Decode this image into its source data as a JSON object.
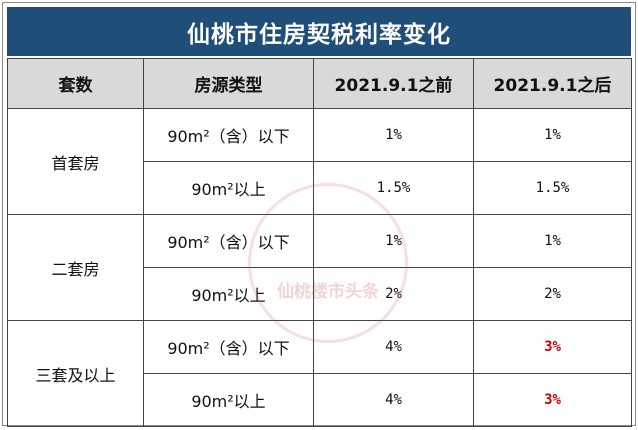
{
  "title": "仙桃市住房契税利率变化",
  "table": {
    "header": [
      "套数",
      "房源类型",
      "2021.9.1之前",
      "2021.9.1之后"
    ],
    "groups": [
      {
        "name": "首套房",
        "rows": [
          [
            "90m²（含）以下",
            "1%",
            "1%"
          ],
          [
            "90m²以上",
            "1.5%",
            "1.5%"
          ]
        ]
      },
      {
        "name": "二套房",
        "rows": [
          [
            "90m²（含）以下",
            "1%",
            "1%"
          ],
          [
            "90m²以上",
            "2%",
            "2%"
          ]
        ]
      },
      {
        "name": "三套及以上",
        "rows": [
          [
            "90m²（含）以下",
            "4%",
            "3%"
          ],
          [
            "90m²以上",
            "4%",
            "3%"
          ]
        ]
      }
    ]
  },
  "watermark": "仙桃楼市头条"
}
